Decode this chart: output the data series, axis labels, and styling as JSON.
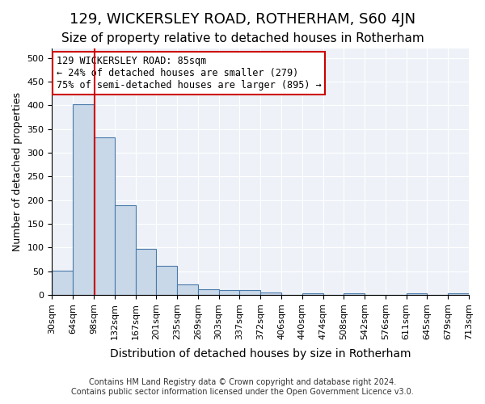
{
  "title": "129, WICKERSLEY ROAD, ROTHERHAM, S60 4JN",
  "subtitle": "Size of property relative to detached houses in Rotherham",
  "xlabel": "Distribution of detached houses by size in Rotherham",
  "ylabel": "Number of detached properties",
  "footer_line1": "Contains HM Land Registry data © Crown copyright and database right 2024.",
  "footer_line2": "Contains public sector information licensed under the Open Government Licence v3.0.",
  "bin_labels": [
    "30sqm",
    "64sqm",
    "98sqm",
    "132sqm",
    "167sqm",
    "201sqm",
    "235sqm",
    "269sqm",
    "303sqm",
    "337sqm",
    "372sqm",
    "406sqm",
    "440sqm",
    "474sqm",
    "508sqm",
    "542sqm",
    "576sqm",
    "611sqm",
    "645sqm",
    "679sqm",
    "713sqm"
  ],
  "bar_values": [
    52,
    403,
    333,
    190,
    98,
    62,
    22,
    12,
    10,
    10,
    6,
    0,
    4,
    0,
    4,
    0,
    0,
    4,
    0,
    4
  ],
  "bar_color": "#c8d8e8",
  "bar_edge_color": "#4a7aaa",
  "bar_edge_width": 0.8,
  "vline_x_index": 1.55,
  "vline_color": "#cc0000",
  "annotation_line1": "129 WICKERSLEY ROAD: 85sqm",
  "annotation_line2": "← 24% of detached houses are smaller (279)",
  "annotation_line3": "75% of semi-detached houses are larger (895) →",
  "annotation_box_color": "#cc0000",
  "ylim": [
    0,
    520
  ],
  "yticks": [
    0,
    50,
    100,
    150,
    200,
    250,
    300,
    350,
    400,
    450,
    500
  ],
  "plot_bg_color": "#eef2f8",
  "grid_color": "#ffffff",
  "title_fontsize": 13,
  "subtitle_fontsize": 11,
  "xlabel_fontsize": 10,
  "ylabel_fontsize": 9,
  "tick_fontsize": 8,
  "annotation_fontsize": 8.5
}
